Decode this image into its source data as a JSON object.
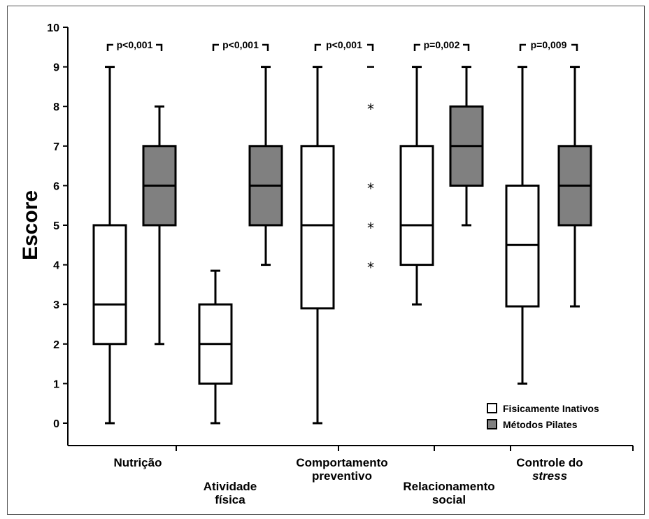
{
  "chart_data": {
    "type": "box",
    "ylabel": "Escore",
    "ylim": [
      0,
      10
    ],
    "yticks": [
      0,
      1,
      2,
      3,
      4,
      5,
      6,
      7,
      8,
      9,
      10
    ],
    "groups": [
      {
        "label_lines": [
          "Nutrição"
        ],
        "label_line": "top",
        "p_value": "p<0,001",
        "boxes": [
          {
            "series": "Fisicamente Inativos",
            "min": 0,
            "q1": 2,
            "median": 3,
            "q3": 5,
            "max": 9
          },
          {
            "series": "Métodos Pilates",
            "min": 2,
            "q1": 5,
            "median": 6,
            "q3": 7,
            "max": 8
          }
        ]
      },
      {
        "label_lines": [
          "Atividade",
          "física"
        ],
        "label_line": "bottom",
        "p_value": "p<0,001",
        "boxes": [
          {
            "series": "Fisicamente Inativos",
            "min": 0,
            "q1": 1,
            "median": 2,
            "q3": 3,
            "max": 3.85
          },
          {
            "series": "Métodos Pilates",
            "min": 4,
            "q1": 5,
            "median": 6,
            "q3": 7,
            "max": 9
          }
        ]
      },
      {
        "label_lines": [
          "Comportamento",
          "preventivo"
        ],
        "label_line": "top",
        "p_value": "p<0,001",
        "boxes": [
          {
            "series": "Fisicamente Inativos",
            "min": 0,
            "q1": 2.9,
            "median": 5,
            "q3": 7,
            "max": 9
          },
          {
            "series": "Métodos Pilates",
            "outliers": [
              4,
              5,
              6,
              8
            ],
            "median_dash": 9
          }
        ]
      },
      {
        "label_lines": [
          "Relacionamento",
          "social"
        ],
        "label_line": "bottom",
        "p_value": "p=0,002",
        "boxes": [
          {
            "series": "Fisicamente Inativos",
            "min": 3,
            "q1": 4,
            "median": 5,
            "q3": 7,
            "max": 9
          },
          {
            "series": "Métodos Pilates",
            "min": 5,
            "q1": 6,
            "median": 7,
            "q3": 8,
            "max": 9
          }
        ]
      },
      {
        "label_lines": [
          "Controle do",
          "stress"
        ],
        "label_line": "top",
        "p_value": "p=0,009",
        "boxes": [
          {
            "series": "Fisicamente Inativos",
            "min": 1,
            "q1": 2.95,
            "median": 4.5,
            "q3": 6,
            "max": 9
          },
          {
            "series": "Métodos Pilates",
            "min": 2.95,
            "q1": 5,
            "median": 6,
            "q3": 7,
            "max": 9
          }
        ]
      }
    ],
    "legend": {
      "position": "bottom-right",
      "entries": [
        {
          "name": "Fisicamente Inativos",
          "color": "#ffffff"
        },
        {
          "name": "Métodos Pilates",
          "color": "#808080"
        }
      ]
    }
  }
}
